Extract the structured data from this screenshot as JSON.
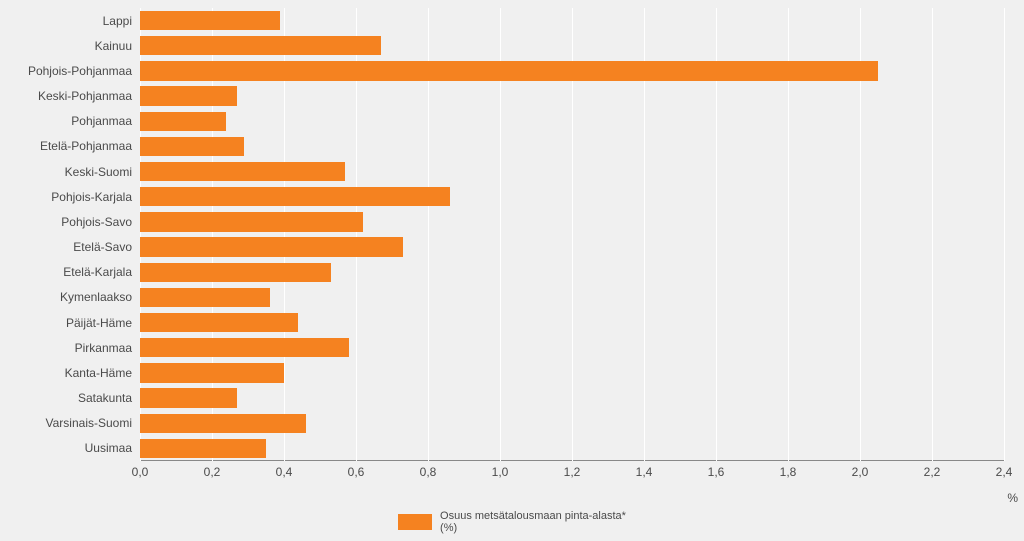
{
  "chart": {
    "type": "bar-horizontal",
    "background_color": "#f0f0f0",
    "grid_color": "#ffffff",
    "bar_color": "#f58220",
    "axis_line_color": "#888888",
    "tick_font_size": 12,
    "tick_font_color": "#4a4a4a",
    "xaxis_title": "%",
    "xlim": [
      0.0,
      2.4
    ],
    "xtick_step": 0.2,
    "xticks": [
      "0,0",
      "0,2",
      "0,4",
      "0,6",
      "0,8",
      "1,0",
      "1,2",
      "1,4",
      "1,6",
      "1,8",
      "2,0",
      "2,2",
      "2,4"
    ],
    "bar_gap_ratio": 0.23,
    "categories": [
      "Lappi",
      "Kainuu",
      "Pohjois-Pohjanmaa",
      "Keski-Pohjanmaa",
      "Pohjanmaa",
      "Etelä-Pohjanmaa",
      "Keski-Suomi",
      "Pohjois-Karjala",
      "Pohjois-Savo",
      "Etelä-Savo",
      "Etelä-Karjala",
      "Kymenlaakso",
      "Päijät-Häme",
      "Pirkanmaa",
      "Kanta-Häme",
      "Satakunta",
      "Varsinais-Suomi",
      "Uusimaa"
    ],
    "values": [
      0.39,
      0.67,
      2.05,
      0.27,
      0.24,
      0.29,
      0.57,
      0.86,
      0.62,
      0.73,
      0.53,
      0.36,
      0.44,
      0.58,
      0.4,
      0.27,
      0.46,
      0.35
    ]
  },
  "legend": {
    "swatch_color": "#f58220",
    "label_line1": "Osuus metsätalousmaan  pinta-alasta*",
    "label_line2": "(%)",
    "font_size": 11
  }
}
